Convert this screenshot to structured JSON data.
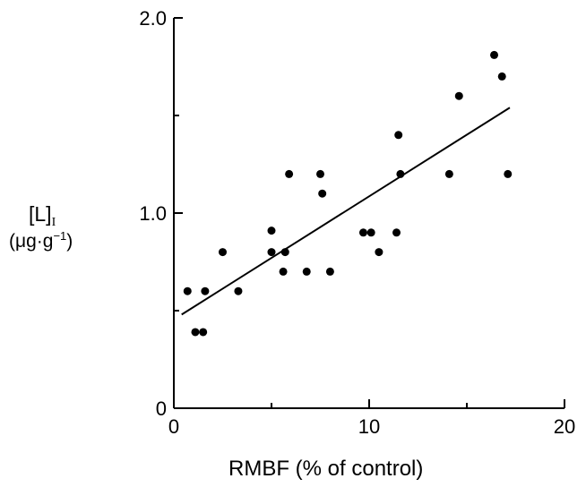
{
  "chart_data": {
    "type": "scatter",
    "title": "",
    "ylabel": {
      "symbol": "[L]",
      "subscript": "I",
      "unit_base": "(μg·g",
      "unit_exp": "−1",
      "unit_close": ")"
    },
    "xlabel": "RMBF (% of control)",
    "xlim": [
      0,
      20
    ],
    "ylim": [
      0,
      2.0
    ],
    "x_ticks": [
      "0",
      "10",
      "20"
    ],
    "y_ticks": [
      "0",
      "1.0",
      "2.0"
    ],
    "grid": false,
    "points": [
      {
        "x": 0.7,
        "y": 0.6
      },
      {
        "x": 1.1,
        "y": 0.39
      },
      {
        "x": 1.5,
        "y": 0.39
      },
      {
        "x": 1.6,
        "y": 0.6
      },
      {
        "x": 2.5,
        "y": 0.8
      },
      {
        "x": 3.3,
        "y": 0.6
      },
      {
        "x": 5.0,
        "y": 0.91
      },
      {
        "x": 5.0,
        "y": 0.8
      },
      {
        "x": 5.6,
        "y": 0.7
      },
      {
        "x": 5.7,
        "y": 0.8
      },
      {
        "x": 5.9,
        "y": 1.2
      },
      {
        "x": 6.8,
        "y": 0.7
      },
      {
        "x": 7.5,
        "y": 1.2
      },
      {
        "x": 7.6,
        "y": 1.1
      },
      {
        "x": 8.0,
        "y": 0.7
      },
      {
        "x": 9.7,
        "y": 0.9
      },
      {
        "x": 10.1,
        "y": 0.9
      },
      {
        "x": 10.5,
        "y": 0.8
      },
      {
        "x": 11.4,
        "y": 0.9
      },
      {
        "x": 11.5,
        "y": 1.4
      },
      {
        "x": 11.6,
        "y": 1.2
      },
      {
        "x": 14.1,
        "y": 1.2
      },
      {
        "x": 14.6,
        "y": 1.6
      },
      {
        "x": 16.4,
        "y": 1.81
      },
      {
        "x": 16.8,
        "y": 1.7
      },
      {
        "x": 17.1,
        "y": 1.2
      }
    ],
    "regression_line": {
      "x": [
        0.4,
        17.2
      ],
      "y": [
        0.48,
        1.54
      ]
    }
  }
}
